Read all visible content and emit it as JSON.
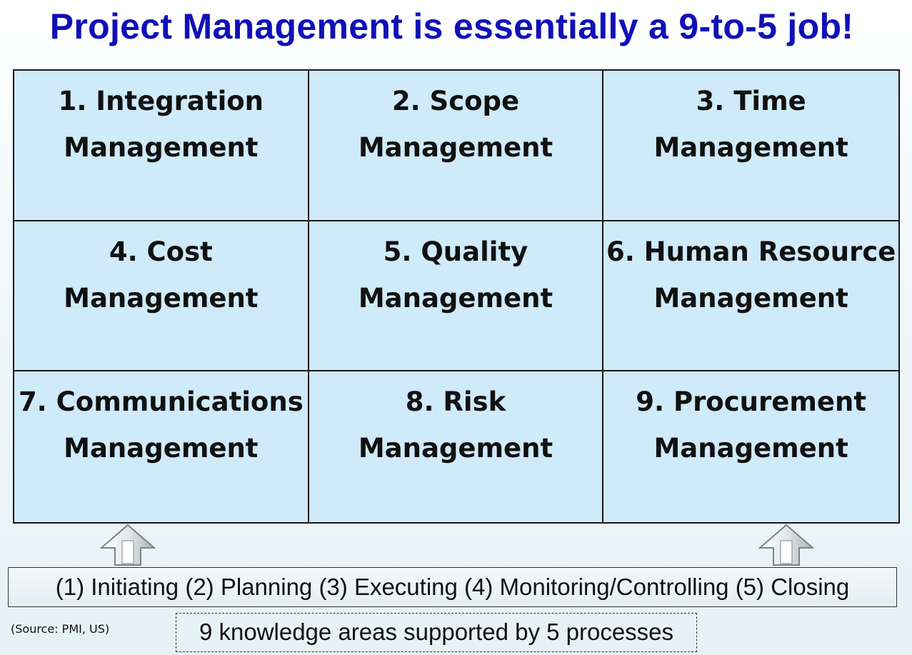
{
  "title": "Project Management is essentially a 9-to-5 job!",
  "knowledge_areas": [
    {
      "line1": "1. Integration",
      "line2": "Management"
    },
    {
      "line1": "2. Scope",
      "line2": "Management"
    },
    {
      "line1": "3. Time",
      "line2": "Management"
    },
    {
      "line1": "4. Cost",
      "line2": "Management"
    },
    {
      "line1": "5. Quality",
      "line2": "Management"
    },
    {
      "line1": "6. Human Resource",
      "line2": "Management"
    },
    {
      "line1": "7. Communications",
      "line2": "Management"
    },
    {
      "line1": "8. Risk",
      "line2": "Management"
    },
    {
      "line1": "9. Procurement",
      "line2": "Management"
    }
  ],
  "processes": "(1) Initiating (2) Planning (3) Executing (4) Monitoring/Controlling (5) Closing",
  "source": "(Source: PMI, US)",
  "summary": "9 knowledge areas supported by 5 processes",
  "colors": {
    "title": "#1010b8",
    "cell_fill": "#cfeaf9",
    "border": "#1a1a1a"
  }
}
